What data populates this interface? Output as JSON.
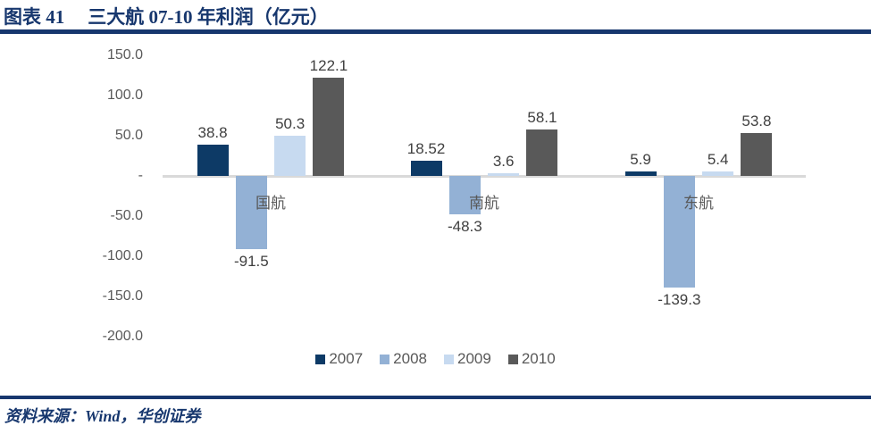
{
  "title": {
    "prefix": "图表 41",
    "text": "三大航 07-10 年利润（亿元）"
  },
  "source": "资料来源：Wind，华创证券",
  "colors": {
    "accent_navy": "#17376e",
    "axis_line": "#d9d9d9",
    "tick_text": "#595959",
    "data_label_text": "#404040"
  },
  "chart_data": {
    "type": "bar",
    "title": "三大航 07-10 年利润（亿元）",
    "categories": [
      "国航",
      "南航",
      "东航"
    ],
    "series": [
      {
        "name": "2007",
        "color": "#0d3a66",
        "values": [
          38.8,
          18.52,
          5.9
        ],
        "labels": [
          "38.8",
          "18.52",
          "5.9"
        ]
      },
      {
        "name": "2008",
        "color": "#93b1d5",
        "values": [
          -91.5,
          -48.3,
          -139.3
        ],
        "labels": [
          "-91.5",
          "-48.3",
          "-139.3"
        ]
      },
      {
        "name": "2009",
        "color": "#c7daf0",
        "values": [
          50.3,
          3.6,
          5.4
        ],
        "labels": [
          "50.3",
          "3.6",
          "5.4"
        ]
      },
      {
        "name": "2010",
        "color": "#595959",
        "values": [
          122.1,
          58.1,
          53.8
        ],
        "labels": [
          "122.1",
          "58.1",
          "53.8"
        ]
      }
    ],
    "ylim": [
      -200,
      150
    ],
    "y_ticks": [
      150,
      100,
      50,
      0,
      -50,
      -100,
      -150,
      -200
    ],
    "y_tick_labels": [
      "150.0",
      "100.0",
      "50.0",
      "-",
      "-50.0",
      "-100.0",
      "-150.0",
      "-200.0"
    ],
    "grid": false,
    "legend_position": "bottom",
    "xlabel": "",
    "ylabel": ""
  }
}
